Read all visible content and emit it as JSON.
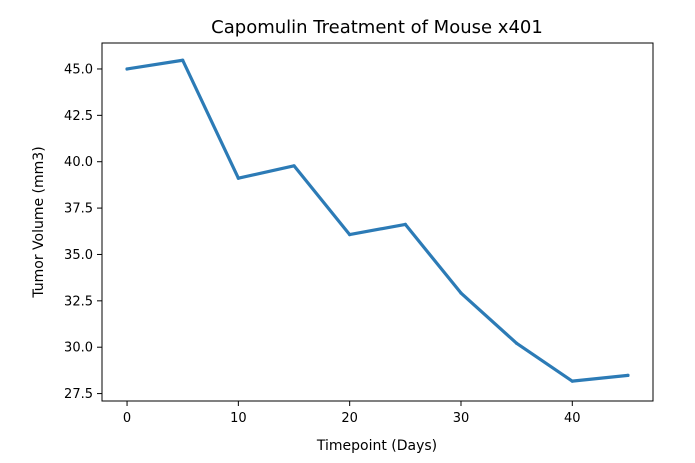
{
  "chart_data": {
    "type": "line",
    "title": "Capomulin Treatment of Mouse x401",
    "xlabel": "Timepoint (Days)",
    "ylabel": "Tumor Volume (mm3)",
    "x": [
      0,
      5,
      10,
      15,
      20,
      25,
      30,
      35,
      40,
      45
    ],
    "series": [
      {
        "values": [
          45.0,
          45.47,
          39.11,
          39.78,
          36.07,
          36.62,
          32.92,
          30.21,
          28.17,
          28.48
        ],
        "color": "#2c7bb6"
      }
    ],
    "xticks": [
      0,
      10,
      20,
      30,
      40
    ],
    "xtick_labels": [
      "0",
      "10",
      "20",
      "30",
      "40"
    ],
    "yticks": [
      27.5,
      30.0,
      32.5,
      35.0,
      37.5,
      40.0,
      42.5,
      45.0
    ],
    "ytick_labels": [
      "27.5",
      "30.0",
      "32.5",
      "35.0",
      "37.5",
      "40.0",
      "42.5",
      "45.0"
    ],
    "xlim": [
      -2.25,
      47.25
    ],
    "ylim": [
      27.1,
      46.4
    ],
    "grid": false,
    "legend": false
  }
}
